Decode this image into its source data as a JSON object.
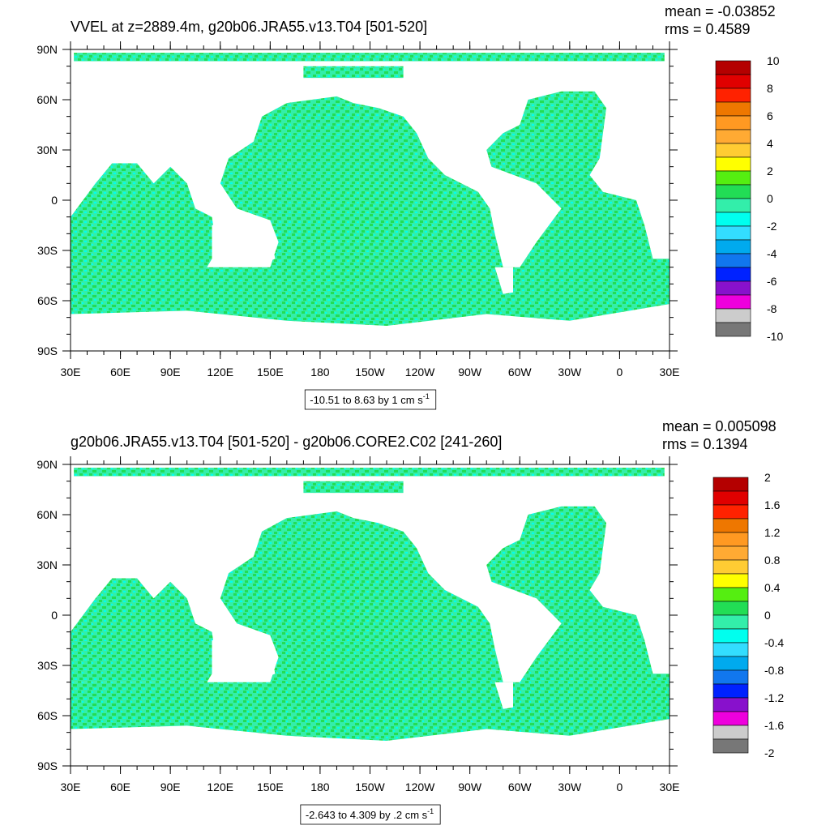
{
  "panels": [
    {
      "title": "VVEL at z=2889.4m, g20b06.JRA55.v13.T04 [501-520]",
      "mean": "mean = -0.03852",
      "rms": "rms = 0.4589",
      "info": {
        "text": "-10.51 to 8.63 by 1 cm s",
        "superscript": "-1"
      },
      "colorbar_labels": [
        10,
        8,
        6,
        4,
        2,
        0,
        -2,
        -4,
        -6,
        -8,
        -10
      ]
    },
    {
      "title": "g20b06.JRA55.v13.T04 [501-520] - g20b06.CORE2.C02 [241-260]",
      "mean": "mean = 0.005098",
      "rms": "rms = 0.1394",
      "info": {
        "text": "-2.643 to 4.309 by .2 cm s",
        "superscript": "-1"
      },
      "colorbar_labels": [
        2,
        1.6,
        1.2,
        0.8,
        0.4,
        0,
        -0.4,
        -0.8,
        -1.2,
        -1.6,
        -2
      ]
    }
  ],
  "map": {
    "lon_range": [
      30,
      390
    ],
    "lat_range": [
      -90,
      90
    ],
    "lat_ticks": [
      {
        "value": 90,
        "label": "90N"
      },
      {
        "value": 60,
        "label": "60N"
      },
      {
        "value": 30,
        "label": "30N"
      },
      0,
      {
        "value": -30,
        "label": "30S"
      },
      {
        "value": -60,
        "label": "60S"
      },
      {
        "value": -90,
        "label": "90S"
      }
    ],
    "lon_ticks": [
      {
        "value": 30,
        "label": "30E"
      },
      {
        "value": 60,
        "label": "60E"
      },
      {
        "value": 90,
        "label": "90E"
      },
      {
        "value": 120,
        "label": "120E"
      },
      {
        "value": 150,
        "label": "150E"
      },
      180,
      {
        "value": 210,
        "label": "150W"
      },
      {
        "value": 240,
        "label": "120W"
      },
      {
        "value": 270,
        "label": "90W"
      },
      {
        "value": 300,
        "label": "60W"
      },
      {
        "value": 330,
        "label": "30W"
      },
      {
        "value": 360,
        "label": "0"
      },
      {
        "value": 390,
        "label": "30E"
      }
    ]
  },
  "colorbar_colors": [
    "#b40000",
    "#e00000",
    "#ff2200",
    "#ee7700",
    "#ff9922",
    "#ffaa33",
    "#ffcc33",
    "#ffff00",
    "#55ee11",
    "#22dd55",
    "#33eeaa",
    "#00ffee",
    "#33ddff",
    "#00aaee",
    "#1177ee",
    "#0022ff",
    "#8811cc",
    "#ee00dd",
    "#cccccc",
    "#777777"
  ]
}
